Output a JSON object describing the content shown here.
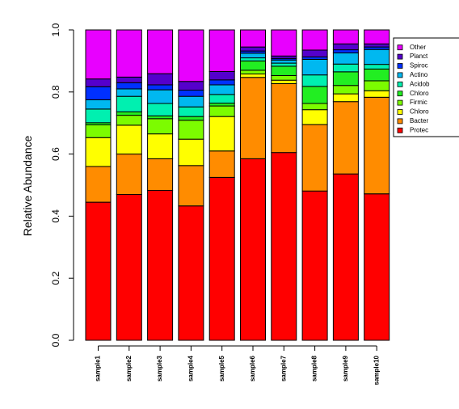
{
  "chart_data": {
    "type": "bar",
    "stacked": true,
    "ylabel": "Relative Abundance",
    "ylim": [
      0,
      1
    ],
    "yticks": [
      "0.0",
      "0.2",
      "0.4",
      "0.6",
      "0.8",
      "1.0"
    ],
    "legend_position": "top-right",
    "categories": [
      "sample1",
      "sample2",
      "sample3",
      "sample4",
      "sample5",
      "sample6",
      "sample7",
      "sample8",
      "sample9",
      "sample10"
    ],
    "series": [
      {
        "name": "Protec",
        "color": "#ff0000",
        "values": [
          0.445,
          0.47,
          0.483,
          0.433,
          0.525,
          0.585,
          0.605,
          0.481,
          0.536,
          0.472
        ]
      },
      {
        "name": "Bacter",
        "color": "#ff8c00",
        "values": [
          0.115,
          0.13,
          0.102,
          0.13,
          0.085,
          0.262,
          0.222,
          0.214,
          0.233,
          0.311
        ]
      },
      {
        "name": "Chloro",
        "color": "#ffff00",
        "values": [
          0.093,
          0.093,
          0.08,
          0.085,
          0.111,
          0.011,
          0.011,
          0.048,
          0.025,
          0.021
        ]
      },
      {
        "name": "Firmic",
        "color": "#7cfc00",
        "values": [
          0.041,
          0.032,
          0.049,
          0.061,
          0.034,
          0.012,
          0.015,
          0.02,
          0.027,
          0.032
        ]
      },
      {
        "name": "Chloro",
        "color": "#22ee22",
        "values": [
          0.007,
          0.011,
          0.009,
          0.012,
          0.009,
          0.03,
          0.03,
          0.055,
          0.044,
          0.038
        ]
      },
      {
        "name": "Acidob",
        "color": "#00f0b0",
        "values": [
          0.044,
          0.05,
          0.04,
          0.031,
          0.028,
          0.01,
          0.01,
          0.037,
          0.025,
          0.015
        ]
      },
      {
        "name": "Actino",
        "color": "#00b8f0",
        "values": [
          0.03,
          0.024,
          0.044,
          0.034,
          0.031,
          0.015,
          0.01,
          0.05,
          0.036,
          0.048
        ]
      },
      {
        "name": "Spiroc",
        "color": "#0030ff",
        "values": [
          0.042,
          0.02,
          0.016,
          0.02,
          0.016,
          0.007,
          0.005,
          0.008,
          0.01,
          0.008
        ]
      },
      {
        "name": "Planct",
        "color": "#5500cc",
        "values": [
          0.025,
          0.018,
          0.036,
          0.028,
          0.027,
          0.013,
          0.008,
          0.022,
          0.019,
          0.01
        ]
      },
      {
        "name": "Other",
        "color": "#e800ff",
        "values": [
          0.158,
          0.152,
          0.141,
          0.166,
          0.134,
          0.055,
          0.084,
          0.065,
          0.045,
          0.045
        ]
      }
    ]
  }
}
